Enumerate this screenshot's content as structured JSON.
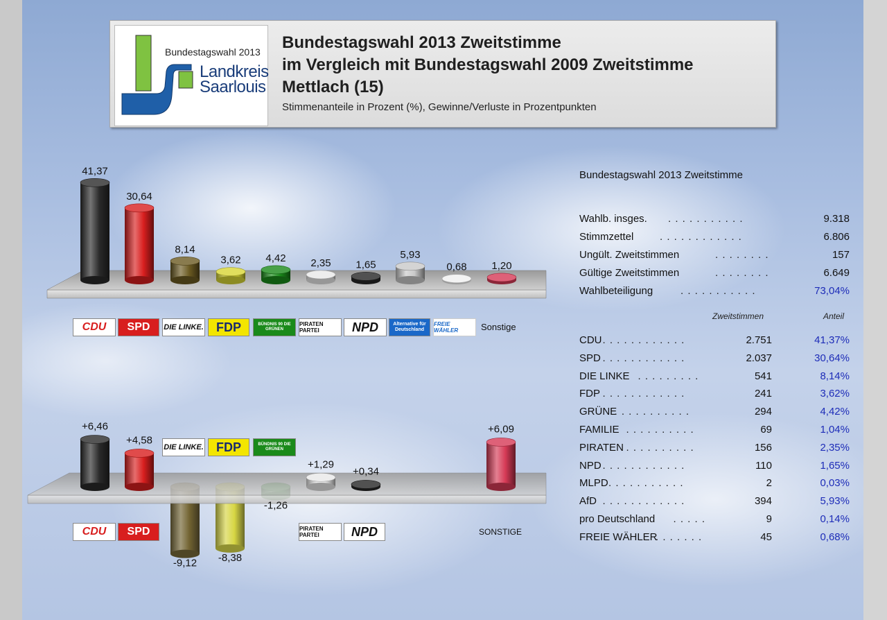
{
  "header": {
    "logo_top": "Bundestagswahl 2013",
    "logo_line1": "Landkreis",
    "logo_line2": "Saarlouis",
    "title1": "Bundestagswahl 2013 Zweitstimme",
    "title2": "im Vergleich mit Bundestagswahl 2009 Zweitstimme",
    "title3": "Mettlach (15)",
    "subtitle": "Stimmenanteile in Prozent (%), Gewinne/Verluste in Prozentpunkten"
  },
  "colors": {
    "CDU": "#2a2a2a",
    "SPD": "#d81e1e",
    "DIE LINKE": "#6b5a22",
    "FDP": "#d8d635",
    "GRÜNE": "#1a8a1a",
    "PIRATEN": "#e8e8e8",
    "NPD": "#262626",
    "AfD": "#c9c9c9",
    "FREIE WÄHLER": "#f0f0f0",
    "Sonstige": "#d63a56",
    "highlight": "#1d2cb8"
  },
  "chart_data": [
    {
      "type": "bar",
      "categories": [
        "CDU",
        "SPD",
        "DIE LINKE",
        "FDP",
        "GRÜNE",
        "PIRATEN",
        "NPD",
        "AfD",
        "FREIE WÄHLER",
        "Sonstige"
      ],
      "values": [
        41.37,
        30.64,
        8.14,
        3.62,
        4.42,
        2.35,
        1.65,
        5.93,
        0.68,
        1.2
      ],
      "labels": [
        "41,37",
        "30,64",
        "8,14",
        "3,62",
        "4,42",
        "2,35",
        "1,65",
        "5,93",
        "0,68",
        "1,20"
      ],
      "axis_label": "Sonstige"
    },
    {
      "type": "bar",
      "categories": [
        "CDU",
        "SPD",
        "DIE LINKE",
        "FDP",
        "GRÜNE",
        "PIRATEN",
        "NPD",
        "SONSTIGE"
      ],
      "values": [
        6.46,
        4.58,
        -9.12,
        -8.38,
        -1.26,
        1.29,
        0.34,
        6.09
      ],
      "labels": [
        "+6,46",
        "+4,58",
        "-9,12",
        "-8,38",
        "-1,26",
        "+1,29",
        "+0,34",
        "+6,09"
      ],
      "axis_label": "SONSTIGE"
    }
  ],
  "party_logos_top": [
    "CDU",
    "SPD",
    "DIE LINKE.",
    "FDP",
    "BÜNDNIS 90 DIE GRÜNEN",
    "PIRATEN PARTEI",
    "NPD",
    "Alternative für Deutschland",
    "FREIE WÄHLER"
  ],
  "party_logos_bottom_upper": [
    "DIE LINKE.",
    "FDP",
    "BÜNDNIS 90 DIE GRÜNEN"
  ],
  "party_logos_bottom_lower": [
    "CDU",
    "SPD",
    "PIRATEN PARTEI",
    "NPD"
  ],
  "stats": {
    "title": "Bundestagswahl 2013 Zweitstimme",
    "summary": [
      {
        "label": "Wahlb. insges.",
        "value": "9.318"
      },
      {
        "label": "Stimmzettel",
        "value": "6.806"
      },
      {
        "label": "Ungült. Zweitstimmen",
        "value": "157"
      },
      {
        "label": "Gültige Zweitstimmen",
        "value": "6.649"
      },
      {
        "label": "Wahlbeteiligung",
        "value": "73,04%"
      }
    ],
    "col_votes": "Zweitstimmen",
    "col_share": "Anteil",
    "parties": [
      {
        "name": "CDU",
        "votes": "2.751",
        "share": "41,37%"
      },
      {
        "name": "SPD",
        "votes": "2.037",
        "share": "30,64%"
      },
      {
        "name": "DIE LINKE",
        "votes": "541",
        "share": "8,14%"
      },
      {
        "name": "FDP",
        "votes": "241",
        "share": "3,62%"
      },
      {
        "name": "GRÜNE",
        "votes": "294",
        "share": "4,42%"
      },
      {
        "name": "FAMILIE",
        "votes": "69",
        "share": "1,04%"
      },
      {
        "name": "PIRATEN",
        "votes": "156",
        "share": "2,35%"
      },
      {
        "name": "NPD",
        "votes": "110",
        "share": "1,65%"
      },
      {
        "name": "MLPD",
        "votes": "2",
        "share": "0,03%"
      },
      {
        "name": "AfD",
        "votes": "394",
        "share": "5,93%"
      },
      {
        "name": "pro Deutschland",
        "votes": "9",
        "share": "0,14%"
      },
      {
        "name": "FREIE WÄHLER",
        "votes": "45",
        "share": "0,68%"
      }
    ]
  }
}
